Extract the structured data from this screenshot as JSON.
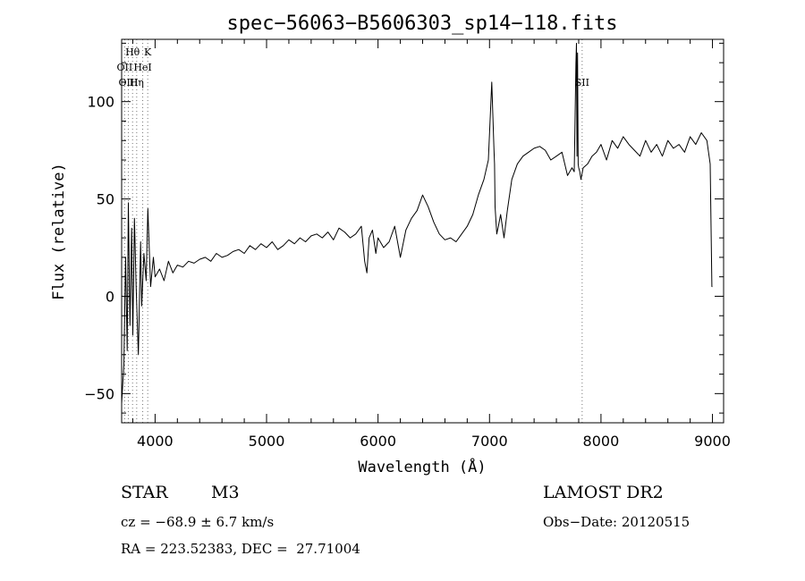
{
  "chart_data": {
    "type": "line",
    "title": "spec−56063−B5606303_sp14−118.fits",
    "xlabel": "Wavelength (Å)",
    "ylabel": "Flux (relative)",
    "xlim": [
      3700,
      9100
    ],
    "ylim": [
      -65,
      132
    ],
    "x_ticks": [
      4000,
      5000,
      6000,
      7000,
      8000,
      9000
    ],
    "x_tick_labels": [
      "4000",
      "5000",
      "6000",
      "7000",
      "8000",
      "9000"
    ],
    "y_ticks": [
      -50,
      0,
      50,
      100
    ],
    "y_tick_labels": [
      "−50",
      "0",
      "50",
      "100"
    ],
    "grid": false,
    "line_color": "#000000",
    "line_markers": [
      {
        "label": "Hθ",
        "x": 3798,
        "row": 1
      },
      {
        "label": "K",
        "x": 3934,
        "row": 1
      },
      {
        "label": "OII",
        "x": 3727,
        "row": 2
      },
      {
        "label": "HeI",
        "x": 3889,
        "row": 2
      },
      {
        "label": "OIII",
        "x": 3760,
        "row": 3
      },
      {
        "label": "Hη",
        "x": 3835,
        "row": 3
      },
      {
        "label": "SII",
        "x": 7831,
        "row": 3
      }
    ],
    "series": [
      {
        "x": [
          3700,
          3720,
          3735,
          3750,
          3760,
          3775,
          3790,
          3800,
          3815,
          3830,
          3850,
          3870,
          3880,
          3900,
          3920,
          3935,
          3960,
          3985,
          4000,
          4040,
          4080,
          4120,
          4160,
          4200,
          4250,
          4300,
          4350,
          4400,
          4450,
          4500,
          4550,
          4600,
          4650,
          4700,
          4750,
          4800,
          4850,
          4900,
          4950,
          5000,
          5050,
          5100,
          5150,
          5200,
          5250,
          5300,
          5350,
          5400,
          5450,
          5500,
          5550,
          5600,
          5650,
          5700,
          5750,
          5800,
          5850,
          5880,
          5900,
          5920,
          5950,
          5980,
          6000,
          6050,
          6100,
          6150,
          6200,
          6250,
          6300,
          6350,
          6400,
          6450,
          6500,
          6550,
          6600,
          6650,
          6700,
          6750,
          6800,
          6850,
          6900,
          6950,
          6990,
          7020,
          7040,
          7045,
          7050,
          7065,
          7080,
          7100,
          7130,
          7160,
          7200,
          7250,
          7300,
          7350,
          7400,
          7450,
          7500,
          7550,
          7600,
          7650,
          7700,
          7740,
          7760,
          7775,
          7780,
          7785,
          7790,
          7795,
          7800,
          7810,
          7820,
          7840,
          7880,
          7920,
          7960,
          8000,
          8050,
          8100,
          8150,
          8200,
          8250,
          8300,
          8350,
          8400,
          8450,
          8500,
          8550,
          8600,
          8650,
          8700,
          8750,
          8800,
          8850,
          8900,
          8950,
          8980,
          8995,
          9000
        ],
        "y": [
          -55,
          -35,
          20,
          -28,
          48,
          -15,
          35,
          -20,
          40,
          5,
          -30,
          28,
          -5,
          22,
          8,
          45,
          5,
          20,
          10,
          14,
          8,
          18,
          12,
          16,
          15,
          18,
          17,
          19,
          20,
          18,
          22,
          20,
          21,
          23,
          24,
          22,
          26,
          24,
          27,
          25,
          28,
          24,
          26,
          29,
          27,
          30,
          28,
          31,
          32,
          30,
          33,
          29,
          35,
          33,
          30,
          32,
          36,
          18,
          12,
          30,
          34,
          22,
          30,
          25,
          28,
          36,
          20,
          34,
          40,
          44,
          52,
          46,
          38,
          32,
          29,
          30,
          28,
          32,
          36,
          42,
          52,
          60,
          70,
          110,
          75,
          68,
          46,
          32,
          36,
          42,
          30,
          44,
          60,
          68,
          72,
          74,
          76,
          77,
          75,
          70,
          72,
          74,
          62,
          66,
          64,
          120,
          130,
          72,
          125,
          68,
          66,
          64,
          60,
          66,
          68,
          72,
          74,
          78,
          70,
          80,
          76,
          82,
          78,
          75,
          72,
          80,
          74,
          78,
          72,
          80,
          76,
          78,
          74,
          82,
          78,
          84,
          80,
          68,
          5,
          5
        ]
      }
    ]
  },
  "info": {
    "object_class": "STAR",
    "subclass": "M3",
    "cz": "cz = −68.9 ± 6.7 km/s",
    "coords": "RA = 223.52383, DEC =  27.71004",
    "survey": "LAMOST DR2",
    "obs_date": "Obs−Date: 20120515"
  }
}
